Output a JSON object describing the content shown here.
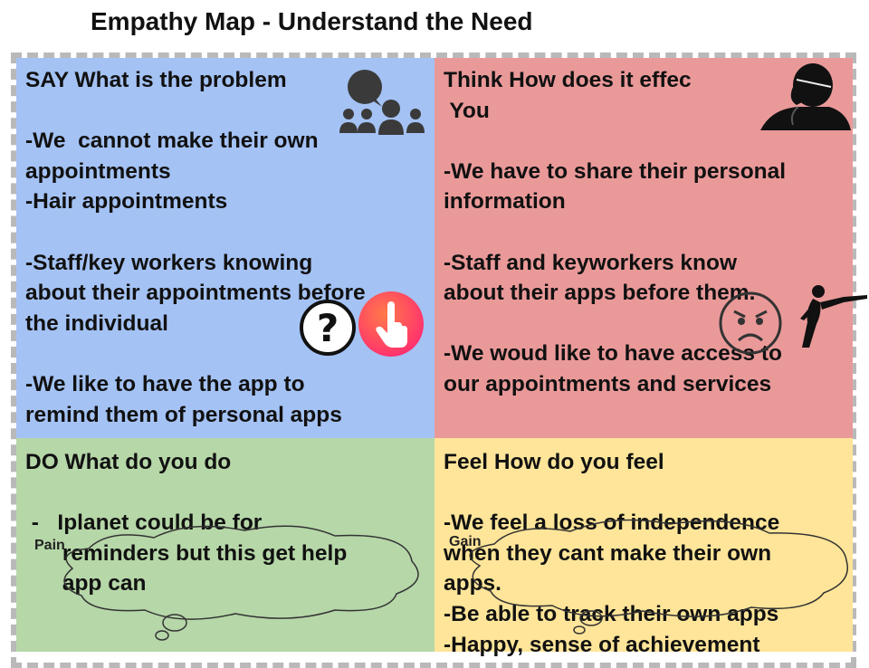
{
  "title": "Empathy Map - Understand the Need",
  "say": {
    "lines": [
      "SAY What is the problem",
      "",
      "-We  cannot make their own",
      "appointments",
      "-Hair appointments",
      "",
      "-Staff/key workers knowing",
      "about their appointments before",
      "the individual",
      "",
      "-We like to have the app to",
      "remind them of personal apps"
    ]
  },
  "think": {
    "lines": [
      "Think How does it effec",
      " You",
      "",
      "-We have to share their personal",
      "information",
      "",
      "-Staff and keyworkers know",
      "about their apps before them.",
      "",
      "-We woud like to have access to",
      "our appointments and services"
    ]
  },
  "do": {
    "lines": [
      "DO What do you do",
      "",
      " -   Iplanet could be for",
      "      reminders but this get help",
      "      app can"
    ]
  },
  "feel": {
    "lines": [
      "Feel How do you feel",
      "",
      "-We feel a loss of independence",
      "when they cant make their own",
      "apps.",
      "-Be able to track their own apps",
      "-Happy, sense of achievement"
    ]
  },
  "pain_label": "Pain",
  "gain_label": "Gain",
  "icons": {
    "say": "speech-group-icon",
    "think": "thinking-person-icon",
    "question": "question-mark-icon",
    "tap": "tap-hand-icon",
    "angry": "angry-face-icon",
    "dancer": "dancing-person-icon"
  },
  "colors": {
    "say": "#a4c2f4",
    "think": "#ea9999",
    "do": "#b6d7a8",
    "feel": "#ffe599",
    "frame": "#b9b9b9",
    "tap_button": "#ff3b6b"
  }
}
